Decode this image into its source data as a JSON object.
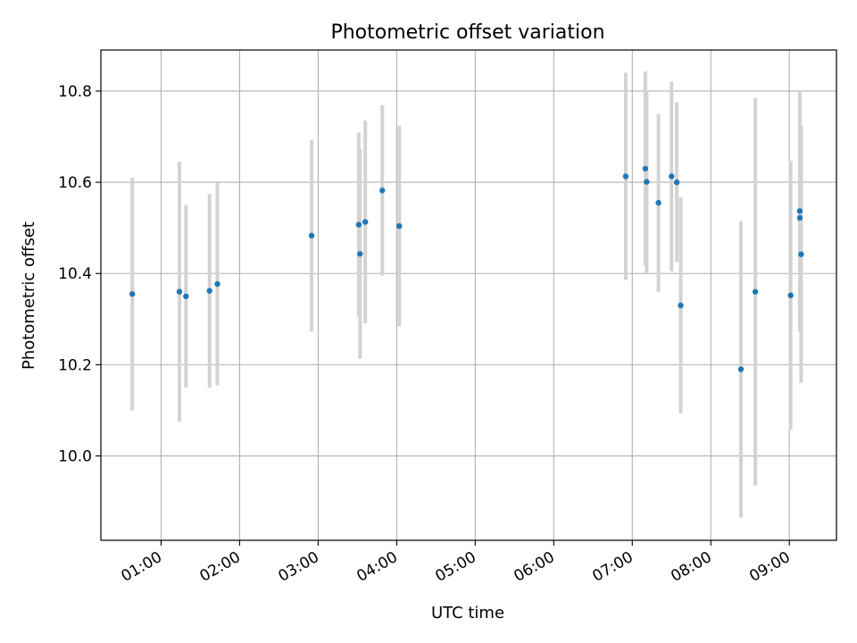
{
  "chart_data": {
    "type": "scatter",
    "title": "Photometric offset variation",
    "xlabel": "UTC time",
    "ylabel": "Photometric offset",
    "x_ticks": [
      "01:00",
      "02:00",
      "03:00",
      "04:00",
      "05:00",
      "06:00",
      "07:00",
      "08:00",
      "09:00"
    ],
    "y_ticks": [
      "10.0",
      "10.2",
      "10.4",
      "10.6",
      "10.8"
    ],
    "xlim": [
      "00:14",
      "09:36"
    ],
    "ylim": [
      9.815,
      10.89
    ],
    "grid": true,
    "legend": "none",
    "colors": {
      "points": "#1f77b4",
      "errorbars": "#d3d3d3",
      "grid": "#b0b0b0"
    },
    "points": [
      {
        "x": "00:38",
        "y": 10.355,
        "yerr": 0.255
      },
      {
        "x": "01:14",
        "y": 10.36,
        "yerr": 0.285
      },
      {
        "x": "01:19",
        "y": 10.35,
        "yerr": 0.2
      },
      {
        "x": "01:37",
        "y": 10.362,
        "yerr": 0.212
      },
      {
        "x": "01:43",
        "y": 10.377,
        "yerr": 0.222
      },
      {
        "x": "02:55",
        "y": 10.483,
        "yerr": 0.21
      },
      {
        "x": "03:31",
        "y": 10.507,
        "yerr": 0.202
      },
      {
        "x": "03:32",
        "y": 10.443,
        "yerr": 0.23
      },
      {
        "x": "03:36",
        "y": 10.513,
        "yerr": 0.222
      },
      {
        "x": "03:49",
        "y": 10.582,
        "yerr": 0.187
      },
      {
        "x": "04:02",
        "y": 10.504,
        "yerr": 0.22
      },
      {
        "x": "06:55",
        "y": 10.613,
        "yerr": 0.227
      },
      {
        "x": "07:10",
        "y": 10.63,
        "yerr": 0.213
      },
      {
        "x": "07:11",
        "y": 10.601,
        "yerr": 0.2
      },
      {
        "x": "07:20",
        "y": 10.555,
        "yerr": 0.195
      },
      {
        "x": "07:30",
        "y": 10.613,
        "yerr": 0.208
      },
      {
        "x": "07:34",
        "y": 10.6,
        "yerr": 0.175
      },
      {
        "x": "07:37",
        "y": 10.33,
        "yerr": 0.237
      },
      {
        "x": "08:23",
        "y": 10.19,
        "yerr": 0.325
      },
      {
        "x": "08:34",
        "y": 10.36,
        "yerr": 0.425
      },
      {
        "x": "09:01",
        "y": 10.352,
        "yerr": 0.295
      },
      {
        "x": "09:08",
        "y": 10.537,
        "yerr": 0.265
      },
      {
        "x": "09:08",
        "y": 10.522,
        "yerr": 0.2
      },
      {
        "x": "09:09",
        "y": 10.442,
        "yerr": 0.282
      }
    ]
  }
}
